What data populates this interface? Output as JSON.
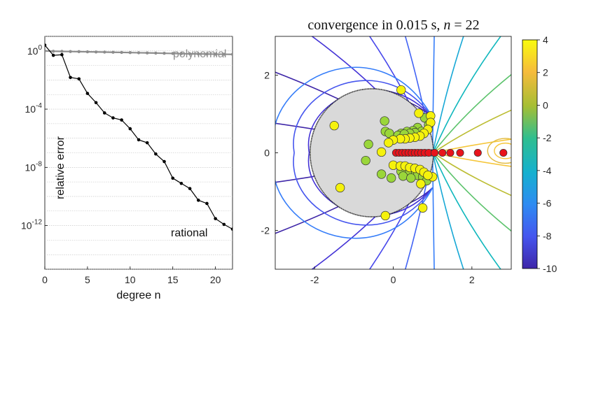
{
  "chart_data": [
    {
      "type": "line",
      "xlabel": "degree n",
      "ylabel": "relative error",
      "xlim": [
        0,
        22
      ],
      "ylim": [
        1e-15,
        10
      ],
      "yscale": "log",
      "grid": true,
      "x_ticks": [
        "0",
        "5",
        "10",
        "15",
        "20"
      ],
      "y_ticks": [
        {
          "base": "10",
          "exp": "0",
          "value": 1
        },
        {
          "base": "10",
          "exp": "-4",
          "value": 0.0001
        },
        {
          "base": "10",
          "exp": "-8",
          "value": 1e-08
        },
        {
          "base": "10",
          "exp": "-12",
          "value": 1e-12
        }
      ],
      "annotations": [
        "polynomial",
        "rational"
      ],
      "series": [
        {
          "name": "polynomial",
          "color": "#8c8c8c",
          "x": [
            0,
            1,
            2,
            3,
            4,
            5,
            6,
            7,
            8,
            9,
            10,
            11,
            12,
            13,
            14,
            15,
            16,
            17,
            18,
            19,
            20,
            21,
            22
          ],
          "y": [
            1.0,
            0.95,
            0.93,
            0.91,
            0.89,
            0.87,
            0.85,
            0.83,
            0.81,
            0.79,
            0.77,
            0.75,
            0.73,
            0.71,
            0.69,
            0.67,
            0.65,
            0.63,
            0.62,
            0.61,
            0.6,
            0.59,
            0.58
          ]
        },
        {
          "name": "rational",
          "color": "#000000",
          "x": [
            0,
            1,
            2,
            3,
            4,
            5,
            6,
            7,
            8,
            9,
            10,
            11,
            12,
            13,
            14,
            15,
            16,
            17,
            18,
            19,
            20,
            21,
            22
          ],
          "y": [
            2.5,
            0.5,
            0.55,
            0.015,
            0.012,
            0.0012,
            0.00028,
            5.5e-05,
            2.5e-05,
            1.8e-05,
            4.5e-06,
            7.8e-07,
            4.9e-07,
            8.3e-08,
            2.5e-08,
            1.8e-09,
            7.9e-10,
            3.5e-10,
            5.5e-11,
            3.3e-11,
            3e-12,
            1.2e-12,
            5.7e-13
          ]
        }
      ]
    },
    {
      "type": "contour",
      "title": "convergence in 0.015 s, ",
      "title_var": "n",
      "title_eq": " = 22",
      "xlim": [
        -3,
        3
      ],
      "ylim": [
        -3,
        3
      ],
      "x_ticks": [
        "-2",
        "0",
        "2"
      ],
      "y_ticks": [
        "2",
        "0",
        "-2"
      ],
      "colorbar": {
        "min": -10,
        "max": 4,
        "ticks": [
          "4",
          "2",
          "0",
          "-2",
          "-4",
          "-6",
          "-8",
          "-10"
        ]
      },
      "region": {
        "shape": "disk with slit along positive real axis",
        "fill": "#d9d9d9",
        "radius": 1.65
      },
      "poles_red": [
        0.07,
        0.15,
        0.23,
        0.31,
        0.39,
        0.47,
        0.55,
        0.63,
        0.71,
        0.8,
        0.9,
        1.05,
        1.25,
        1.45,
        1.7,
        2.15,
        2.8
      ],
      "points_yellow": [
        [
          0.2,
          1.62
        ],
        [
          -1.5,
          0.7
        ],
        [
          -1.35,
          -0.9
        ],
        [
          -0.2,
          -1.62
        ],
        [
          0.75,
          -1.42
        ],
        [
          0.7,
          -0.8
        ],
        [
          1.0,
          -0.62
        ],
        [
          0.65,
          1.02
        ],
        [
          0.95,
          0.95
        ],
        [
          0.95,
          0.78
        ],
        [
          0.88,
          0.6
        ],
        [
          0.78,
          0.5
        ],
        [
          0.68,
          0.43
        ],
        [
          0.55,
          0.4
        ],
        [
          0.42,
          0.38
        ],
        [
          0.3,
          0.36
        ],
        [
          0.18,
          0.36
        ],
        [
          0.0,
          0.33
        ],
        [
          -0.12,
          0.26
        ],
        [
          0.0,
          -0.32
        ],
        [
          0.18,
          -0.34
        ],
        [
          0.3,
          -0.34
        ],
        [
          0.42,
          -0.38
        ],
        [
          0.55,
          -0.4
        ],
        [
          0.68,
          -0.43
        ],
        [
          0.78,
          -0.5
        ],
        [
          0.88,
          -0.58
        ],
        [
          -0.3,
          0.02
        ]
      ],
      "points_green": [
        [
          -0.22,
          0.82
        ],
        [
          -0.2,
          0.55
        ],
        [
          -0.1,
          0.5
        ],
        [
          -0.63,
          0.22
        ],
        [
          -0.7,
          -0.2
        ],
        [
          -0.3,
          -0.55
        ],
        [
          -0.05,
          -0.65
        ],
        [
          0.8,
          0.9
        ],
        [
          0.62,
          0.65
        ],
        [
          0.5,
          0.57
        ],
        [
          0.35,
          0.55
        ],
        [
          0.2,
          0.5
        ],
        [
          0.12,
          0.45
        ],
        [
          0.9,
          0.72
        ],
        [
          0.72,
          0.55
        ],
        [
          0.55,
          0.52
        ],
        [
          0.42,
          0.5
        ],
        [
          0.28,
          0.48
        ],
        [
          0.5,
          -0.5
        ],
        [
          0.35,
          -0.5
        ],
        [
          0.2,
          -0.48
        ],
        [
          0.62,
          -0.58
        ],
        [
          0.75,
          -0.62
        ],
        [
          0.85,
          -0.72
        ],
        [
          0.25,
          -0.6
        ],
        [
          0.45,
          -0.65
        ]
      ]
    }
  ]
}
